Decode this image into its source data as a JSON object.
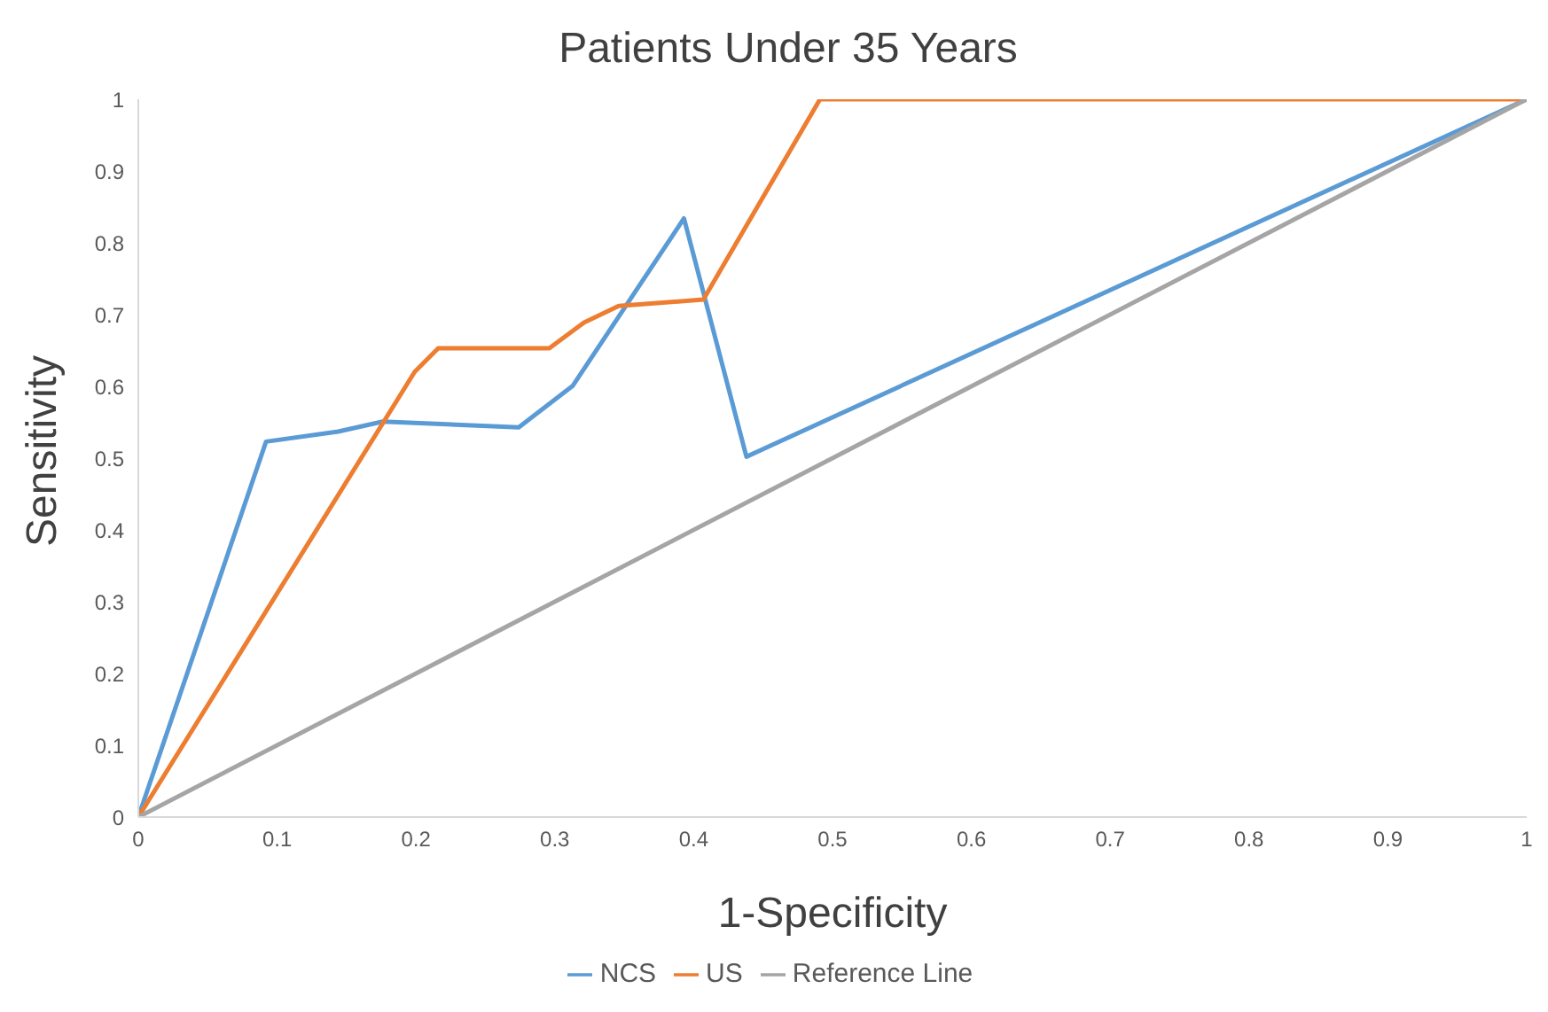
{
  "chart_data": {
    "type": "line",
    "title": "Patients Under 35 Years",
    "xlabel": "1-Specificity",
    "ylabel": "Sensitivity",
    "series": [
      {
        "name": "NCS",
        "color": "#5b9bd5",
        "x": [
          0,
          0.092,
          0.144,
          0.176,
          0.274,
          0.313,
          0.393,
          0.438,
          1
        ],
        "values": [
          0,
          0.523,
          0.537,
          0.551,
          0.543,
          0.601,
          0.834,
          0.502,
          1
        ]
      },
      {
        "name": "US",
        "color": "#ed7d31",
        "x": [
          0,
          0.199,
          0.216,
          0.296,
          0.321,
          0.346,
          0.407,
          0.491,
          1
        ],
        "values": [
          0,
          0.62,
          0.653,
          0.653,
          0.689,
          0.712,
          0.721,
          1,
          1
        ]
      },
      {
        "name": "Reference Line",
        "color": "#a5a5a5",
        "x": [
          0,
          1
        ],
        "values": [
          0,
          1
        ]
      }
    ],
    "xlim": [
      0,
      1
    ],
    "ylim": [
      0,
      1
    ],
    "xticks": [
      0,
      0.1,
      0.2,
      0.3,
      0.4,
      0.5,
      0.6,
      0.7,
      0.8,
      0.9,
      1
    ],
    "yticks": [
      0,
      0.1,
      0.2,
      0.3,
      0.4,
      0.5,
      0.6,
      0.7,
      0.8,
      0.9,
      1
    ],
    "grid": false,
    "legend": "bottom",
    "marker": "none",
    "line_style": "solid"
  }
}
